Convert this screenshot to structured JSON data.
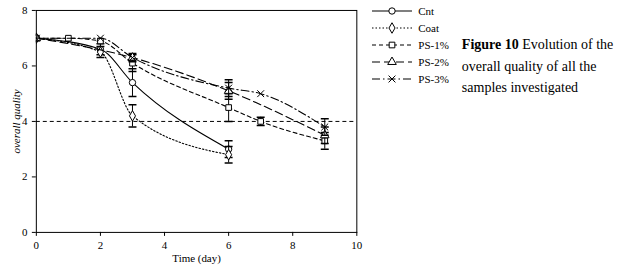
{
  "chart_data": {
    "type": "line",
    "x_label": "Time (day)",
    "y_label": "overall quality",
    "caption_label": "Figure 10",
    "caption": "Evolution of the overall quality of all the samples investigated",
    "xlim": [
      0,
      10
    ],
    "xticks": [
      0,
      2,
      4,
      6,
      8,
      10
    ],
    "ylim": [
      0,
      8
    ],
    "yticks": [
      0,
      2,
      4,
      6,
      8
    ],
    "reference_line": 4,
    "grid": false,
    "series": [
      {
        "name": "Cnt",
        "color": "#000000",
        "marker": "circle",
        "line_style": "solid",
        "x": [
          0,
          2,
          3,
          6
        ],
        "values": [
          7.0,
          6.6,
          5.4,
          3.0
        ],
        "errors": [
          null,
          0.2,
          0.5,
          0.3
        ]
      },
      {
        "name": "Coat",
        "color": "#000000",
        "marker": "diamond",
        "line_style": "dotted",
        "x": [
          0,
          2,
          3,
          6
        ],
        "values": [
          7.0,
          6.5,
          4.2,
          2.8
        ],
        "errors": [
          null,
          0.2,
          0.4,
          0.3
        ]
      },
      {
        "name": "PS-1%",
        "color": "#000000",
        "marker": "square",
        "line_style": "dashed",
        "x": [
          0,
          1,
          2,
          3,
          6,
          7,
          9
        ],
        "values": [
          7.0,
          7.0,
          6.9,
          6.1,
          4.5,
          4.0,
          3.3
        ],
        "errors": [
          null,
          null,
          null,
          0.3,
          0.5,
          0.15,
          0.3
        ]
      },
      {
        "name": "PS-2%",
        "color": "#000000",
        "marker": "triangle",
        "line_style": "longdash",
        "x": [
          0,
          3,
          6,
          9
        ],
        "values": [
          7.0,
          6.3,
          5.1,
          3.5
        ],
        "errors": [
          null,
          0.15,
          0.3,
          0.3
        ]
      },
      {
        "name": "PS-3%",
        "color": "#000000",
        "marker": "times",
        "line_style": "dashdot",
        "x": [
          0,
          2,
          3,
          6,
          7,
          9
        ],
        "values": [
          7.0,
          7.0,
          6.3,
          5.2,
          5.0,
          3.8
        ],
        "errors": [
          null,
          null,
          null,
          0.3,
          null,
          0.3
        ]
      }
    ]
  }
}
